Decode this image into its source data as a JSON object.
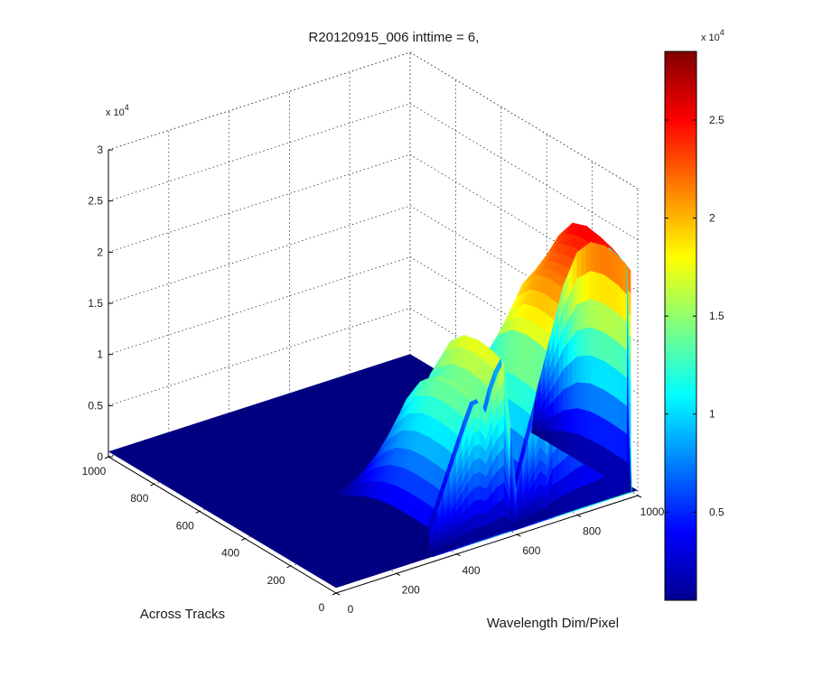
{
  "chart_data": {
    "type": "surface",
    "title": "R20120915_006 inttime = 6,",
    "xlabel": "Wavelength Dim/Pixel",
    "ylabel": "Across Tracks",
    "zlabel": "",
    "xlim": [
      0,
      1000
    ],
    "ylim": [
      0,
      1000
    ],
    "zlim": [
      0,
      30000
    ],
    "x_ticks": [
      "0",
      "200",
      "400",
      "600",
      "800",
      "1000"
    ],
    "y_ticks": [
      "0",
      "200",
      "400",
      "600",
      "800",
      "1000"
    ],
    "z_ticks": [
      "0",
      "0.5",
      "1",
      "1.5",
      "2",
      "2.5",
      "3"
    ],
    "z_exponent": "x 10",
    "z_exponent_power": "4",
    "colorbar": {
      "colormap": "jet",
      "ticks": [
        "0.5",
        "1",
        "1.5",
        "2",
        "2.5"
      ],
      "tick_values": [
        5000,
        10000,
        15000,
        20000,
        25000
      ],
      "range": [
        500,
        28500
      ],
      "exponent": "x 10",
      "exponent_power": "4"
    },
    "grid": true,
    "signal_region": {
      "wavelength_pixels": [
        320,
        980
      ],
      "across_track_pixels": [
        5,
        420
      ]
    },
    "profile_along_wavelength": {
      "x": [
        320,
        360,
        400,
        440,
        470,
        500,
        530,
        560,
        600,
        640,
        680,
        700,
        720,
        760,
        800,
        840,
        880,
        920,
        960,
        980
      ],
      "z": [
        3200,
        6500,
        9800,
        13000,
        15200,
        13200,
        16400,
        17800,
        4500,
        9000,
        13200,
        11500,
        16800,
        19000,
        21500,
        22500,
        23800,
        25500,
        24000,
        23000
      ]
    },
    "profile_across_track": {
      "y": [
        5,
        60,
        120,
        180,
        240,
        300,
        360,
        420
      ],
      "relative_level": [
        0.96,
        0.99,
        1.0,
        0.98,
        0.9,
        0.72,
        0.45,
        0.18
      ]
    }
  }
}
